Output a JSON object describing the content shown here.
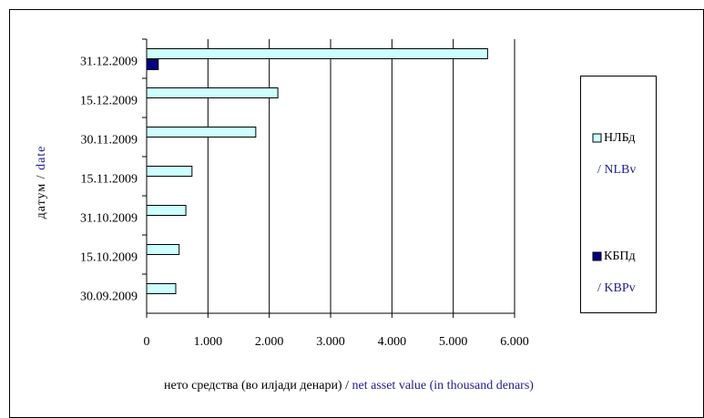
{
  "chart_data": {
    "type": "hbar",
    "categories": [
      "31.12.2009",
      "15.12.2009",
      "30.11.2009",
      "15.11.2009",
      "31.10.2009",
      "15.10.2009",
      "30.09.2009"
    ],
    "series": [
      {
        "name": "НЛБд",
        "name_en": "/ NLBv",
        "color": "#ccffff",
        "values": [
          5560,
          2140,
          1780,
          740,
          640,
          530,
          475
        ]
      },
      {
        "name": "КБПд",
        "name_en": "/ KBPv",
        "color": "#000080",
        "values": [
          190,
          null,
          null,
          null,
          null,
          null,
          null
        ]
      }
    ],
    "xlim": [
      0,
      6000
    ],
    "xticks": [
      0,
      {
        "value": 1000,
        "label": "1.000"
      },
      {
        "value": 2000,
        "label": "2.000"
      },
      {
        "value": 3000,
        "label": "3.000"
      },
      {
        "value": 4000,
        "label": "4.000"
      },
      {
        "value": 5000,
        "label": "5.000"
      },
      {
        "value": 6000,
        "label": "6.000"
      }
    ],
    "xlabel": "нето средства (во илјади денари) /",
    "xlabel_en": "net asset value (in thousand denars)",
    "ylabel": "датум  /",
    "ylabel_en": "date",
    "grid": true
  }
}
